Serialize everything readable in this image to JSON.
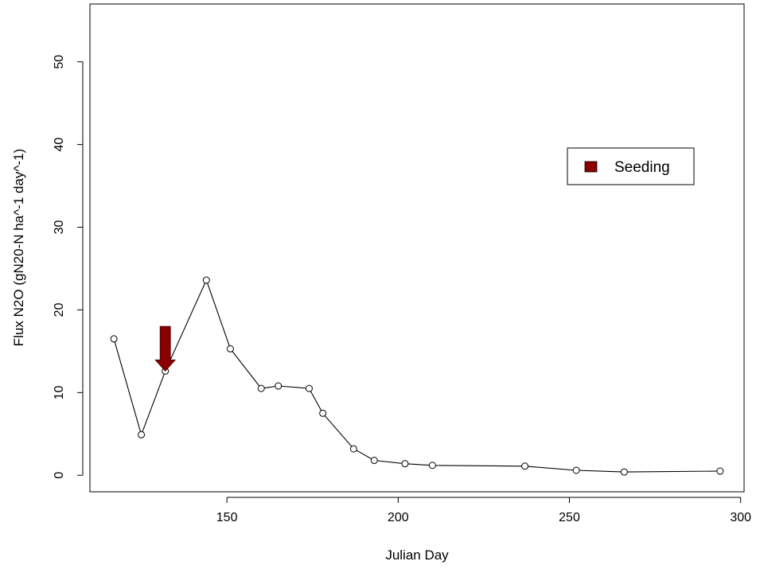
{
  "chart_data": {
    "type": "line",
    "xlabel": "Julian Day",
    "ylabel": "Flux N2O (gN20-N ha^-1 day^-1)",
    "xlim": [
      110,
      301
    ],
    "ylim": [
      -2,
      57
    ],
    "x_ticks": [
      150,
      200,
      250,
      300
    ],
    "y_ticks": [
      0,
      10,
      20,
      30,
      40,
      50
    ],
    "x_tick_labels": [
      "150",
      "200",
      "250",
      "300"
    ],
    "y_tick_labels": [
      "0",
      "10",
      "20",
      "30",
      "40",
      "50"
    ],
    "grid": false,
    "legend": {
      "position": "top-right",
      "entries": [
        {
          "label": "Seeding",
          "color": "#8B0000"
        }
      ]
    },
    "series": [
      {
        "color": "#000000",
        "markers": "open-circle",
        "x": [
          117,
          125,
          132,
          144,
          151,
          160,
          165,
          174,
          178,
          187,
          193,
          202,
          210,
          237,
          252,
          266,
          294
        ],
        "y": [
          16.5,
          4.9,
          12.6,
          23.6,
          15.3,
          10.5,
          10.8,
          10.5,
          7.5,
          3.2,
          1.8,
          1.4,
          1.2,
          1.1,
          0.6,
          0.4,
          0.5
        ]
      }
    ],
    "annotations": [
      {
        "type": "arrow",
        "direction": "down",
        "x": 132,
        "y_from": 18,
        "y_to": 12.6,
        "color": "#8B0000",
        "meaning": "Seeding"
      }
    ]
  }
}
